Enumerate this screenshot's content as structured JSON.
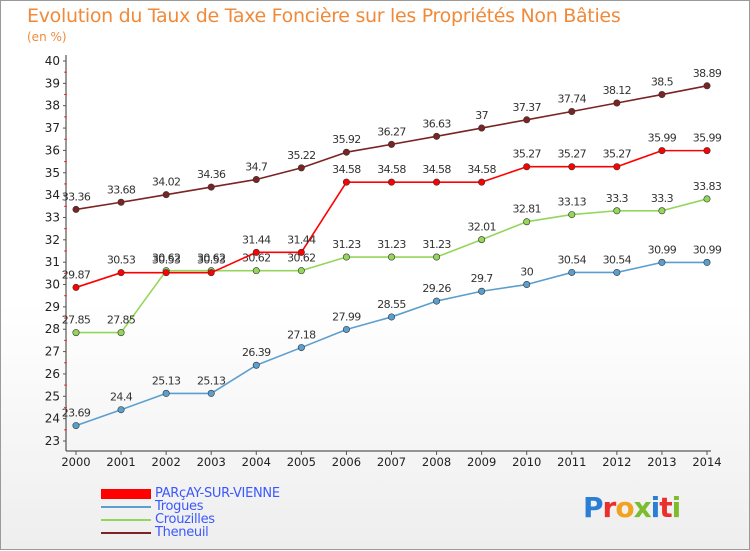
{
  "header": {
    "title": "Evolution du Taux de Taxe Foncière sur les Propriétés Non Bâties",
    "subtitle": "(en %)"
  },
  "logo": {
    "text": "Proxiti",
    "colors": [
      "#2a7fd4",
      "#e9302c",
      "#f2a21e",
      "#7bbd2f",
      "#2a7fd4",
      "#e9302c",
      "#7bbd2f"
    ]
  },
  "chart_data": {
    "type": "line",
    "title": "Evolution du Taux de Taxe Foncière sur les Propriétés Non Bâties",
    "ylabel": "(en %)",
    "xlabel": "",
    "ylim": [
      23,
      40
    ],
    "yticks": [
      23,
      24,
      25,
      26,
      27,
      28,
      29,
      30,
      31,
      32,
      33,
      34,
      35,
      36,
      37,
      38,
      39,
      40
    ],
    "grid": false,
    "x": [
      2000,
      2001,
      2002,
      2003,
      2004,
      2005,
      2006,
      2007,
      2008,
      2009,
      2010,
      2011,
      2012,
      2013,
      2014
    ],
    "series": [
      {
        "name": "Theneuil",
        "color": "#7a2424",
        "values": [
          33.36,
          33.68,
          34.02,
          34.36,
          34.7,
          35.22,
          35.92,
          36.27,
          36.63,
          37,
          37.37,
          37.74,
          38.12,
          38.5,
          38.89
        ],
        "labels": [
          "33.36",
          "33.68",
          "34.02",
          "34.36",
          "34.7",
          "35.22",
          "35.92",
          "36.27",
          "36.63",
          "37",
          "37.37",
          "37.74",
          "38.12",
          "38.5",
          "38.89"
        ]
      },
      {
        "name": "Crouzilles",
        "color": "#93d65a",
        "values": [
          27.85,
          27.85,
          30.62,
          30.62,
          30.62,
          30.62,
          31.23,
          31.23,
          31.23,
          32.01,
          32.81,
          33.13,
          33.3,
          33.3,
          33.83
        ],
        "labels": [
          "27.85",
          "27.85",
          "30.62",
          "30.62",
          "30.62",
          "30.62",
          "31.23",
          "31.23",
          "31.23",
          "32.01",
          "32.81",
          "33.13",
          "33.3",
          "33.3",
          "33.83"
        ]
      },
      {
        "name": "Trogues",
        "color": "#5b9fcf",
        "values": [
          23.69,
          24.4,
          25.13,
          25.13,
          26.39,
          27.18,
          27.99,
          28.55,
          29.26,
          29.7,
          30,
          30.54,
          30.54,
          30.99,
          30.99
        ],
        "labels": [
          "23.69",
          "24.4",
          "25.13",
          "25.13",
          "26.39",
          "27.18",
          "27.99",
          "28.55",
          "29.26",
          "29.7",
          "30",
          "30.54",
          "30.54",
          "30.99",
          "30.99"
        ]
      },
      {
        "name": "PARçAY-SUR-VIENNE",
        "color": "#ff0000",
        "values": [
          29.87,
          30.53,
          30.53,
          30.53,
          31.44,
          31.44,
          34.58,
          34.58,
          34.58,
          34.58,
          35.27,
          35.27,
          35.27,
          35.99,
          35.99
        ],
        "labels": [
          "29.87",
          "30.53",
          "30.53",
          "30.53",
          "31.44",
          "31.44",
          "34.58",
          "34.58",
          "34.58",
          "34.58",
          "35.27",
          "35.27",
          "35.27",
          "35.99",
          "35.99"
        ]
      }
    ],
    "legend": [
      {
        "name": "PARçAY-SUR-VIENNE",
        "color": "#ff0000"
      },
      {
        "name": "Trogues",
        "color": "#5b9fcf"
      },
      {
        "name": "Crouzilles",
        "color": "#93d65a"
      },
      {
        "name": "Theneuil",
        "color": "#7a2424"
      }
    ],
    "legend_position": "bottom-left"
  }
}
